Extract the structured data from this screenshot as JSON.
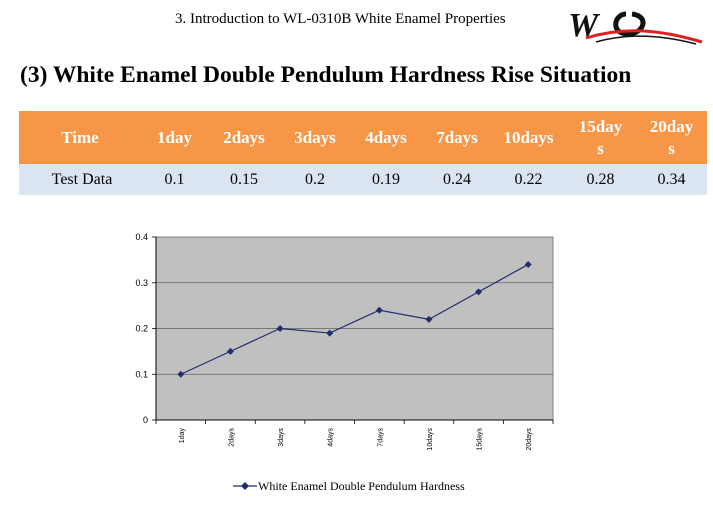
{
  "header": {
    "text": "3. Introduction to WL-0310B White Enamel Properties",
    "logo_text": "WQ"
  },
  "title": "(3) White  Enamel Double Pendulum Hardness Rise Situation",
  "table": {
    "header": [
      "Time",
      "1day",
      "2days",
      "3days",
      "4days",
      "7days",
      "10days",
      "15days",
      "20days"
    ],
    "row_label": "Test Data",
    "row_values": [
      "0.1",
      "0.15",
      "0.2",
      "0.19",
      "0.24",
      "0.22",
      "0.28",
      "0.34"
    ]
  },
  "colors": {
    "table_header_bg": "#f79646",
    "table_row_bg": "#dbe5f1",
    "plot_bg": "#c0c0c0",
    "series_line": "#1f2f6e",
    "logo_red": "#e02020"
  },
  "chart_data": {
    "type": "line",
    "categories": [
      "1day",
      "2days",
      "3days",
      "4days",
      "7days",
      "10days",
      "15days",
      "20days"
    ],
    "series": [
      {
        "name": "White Enamel Double Pendulum Hardness",
        "values": [
          0.1,
          0.15,
          0.2,
          0.19,
          0.24,
          0.22,
          0.28,
          0.34
        ]
      }
    ],
    "yticks": [
      "0",
      "0.1",
      "0.2",
      "0.3",
      "0.4"
    ],
    "ylim": [
      0,
      0.4
    ],
    "grid": "horizontal",
    "legend_position": "bottom",
    "marker": "diamond"
  }
}
